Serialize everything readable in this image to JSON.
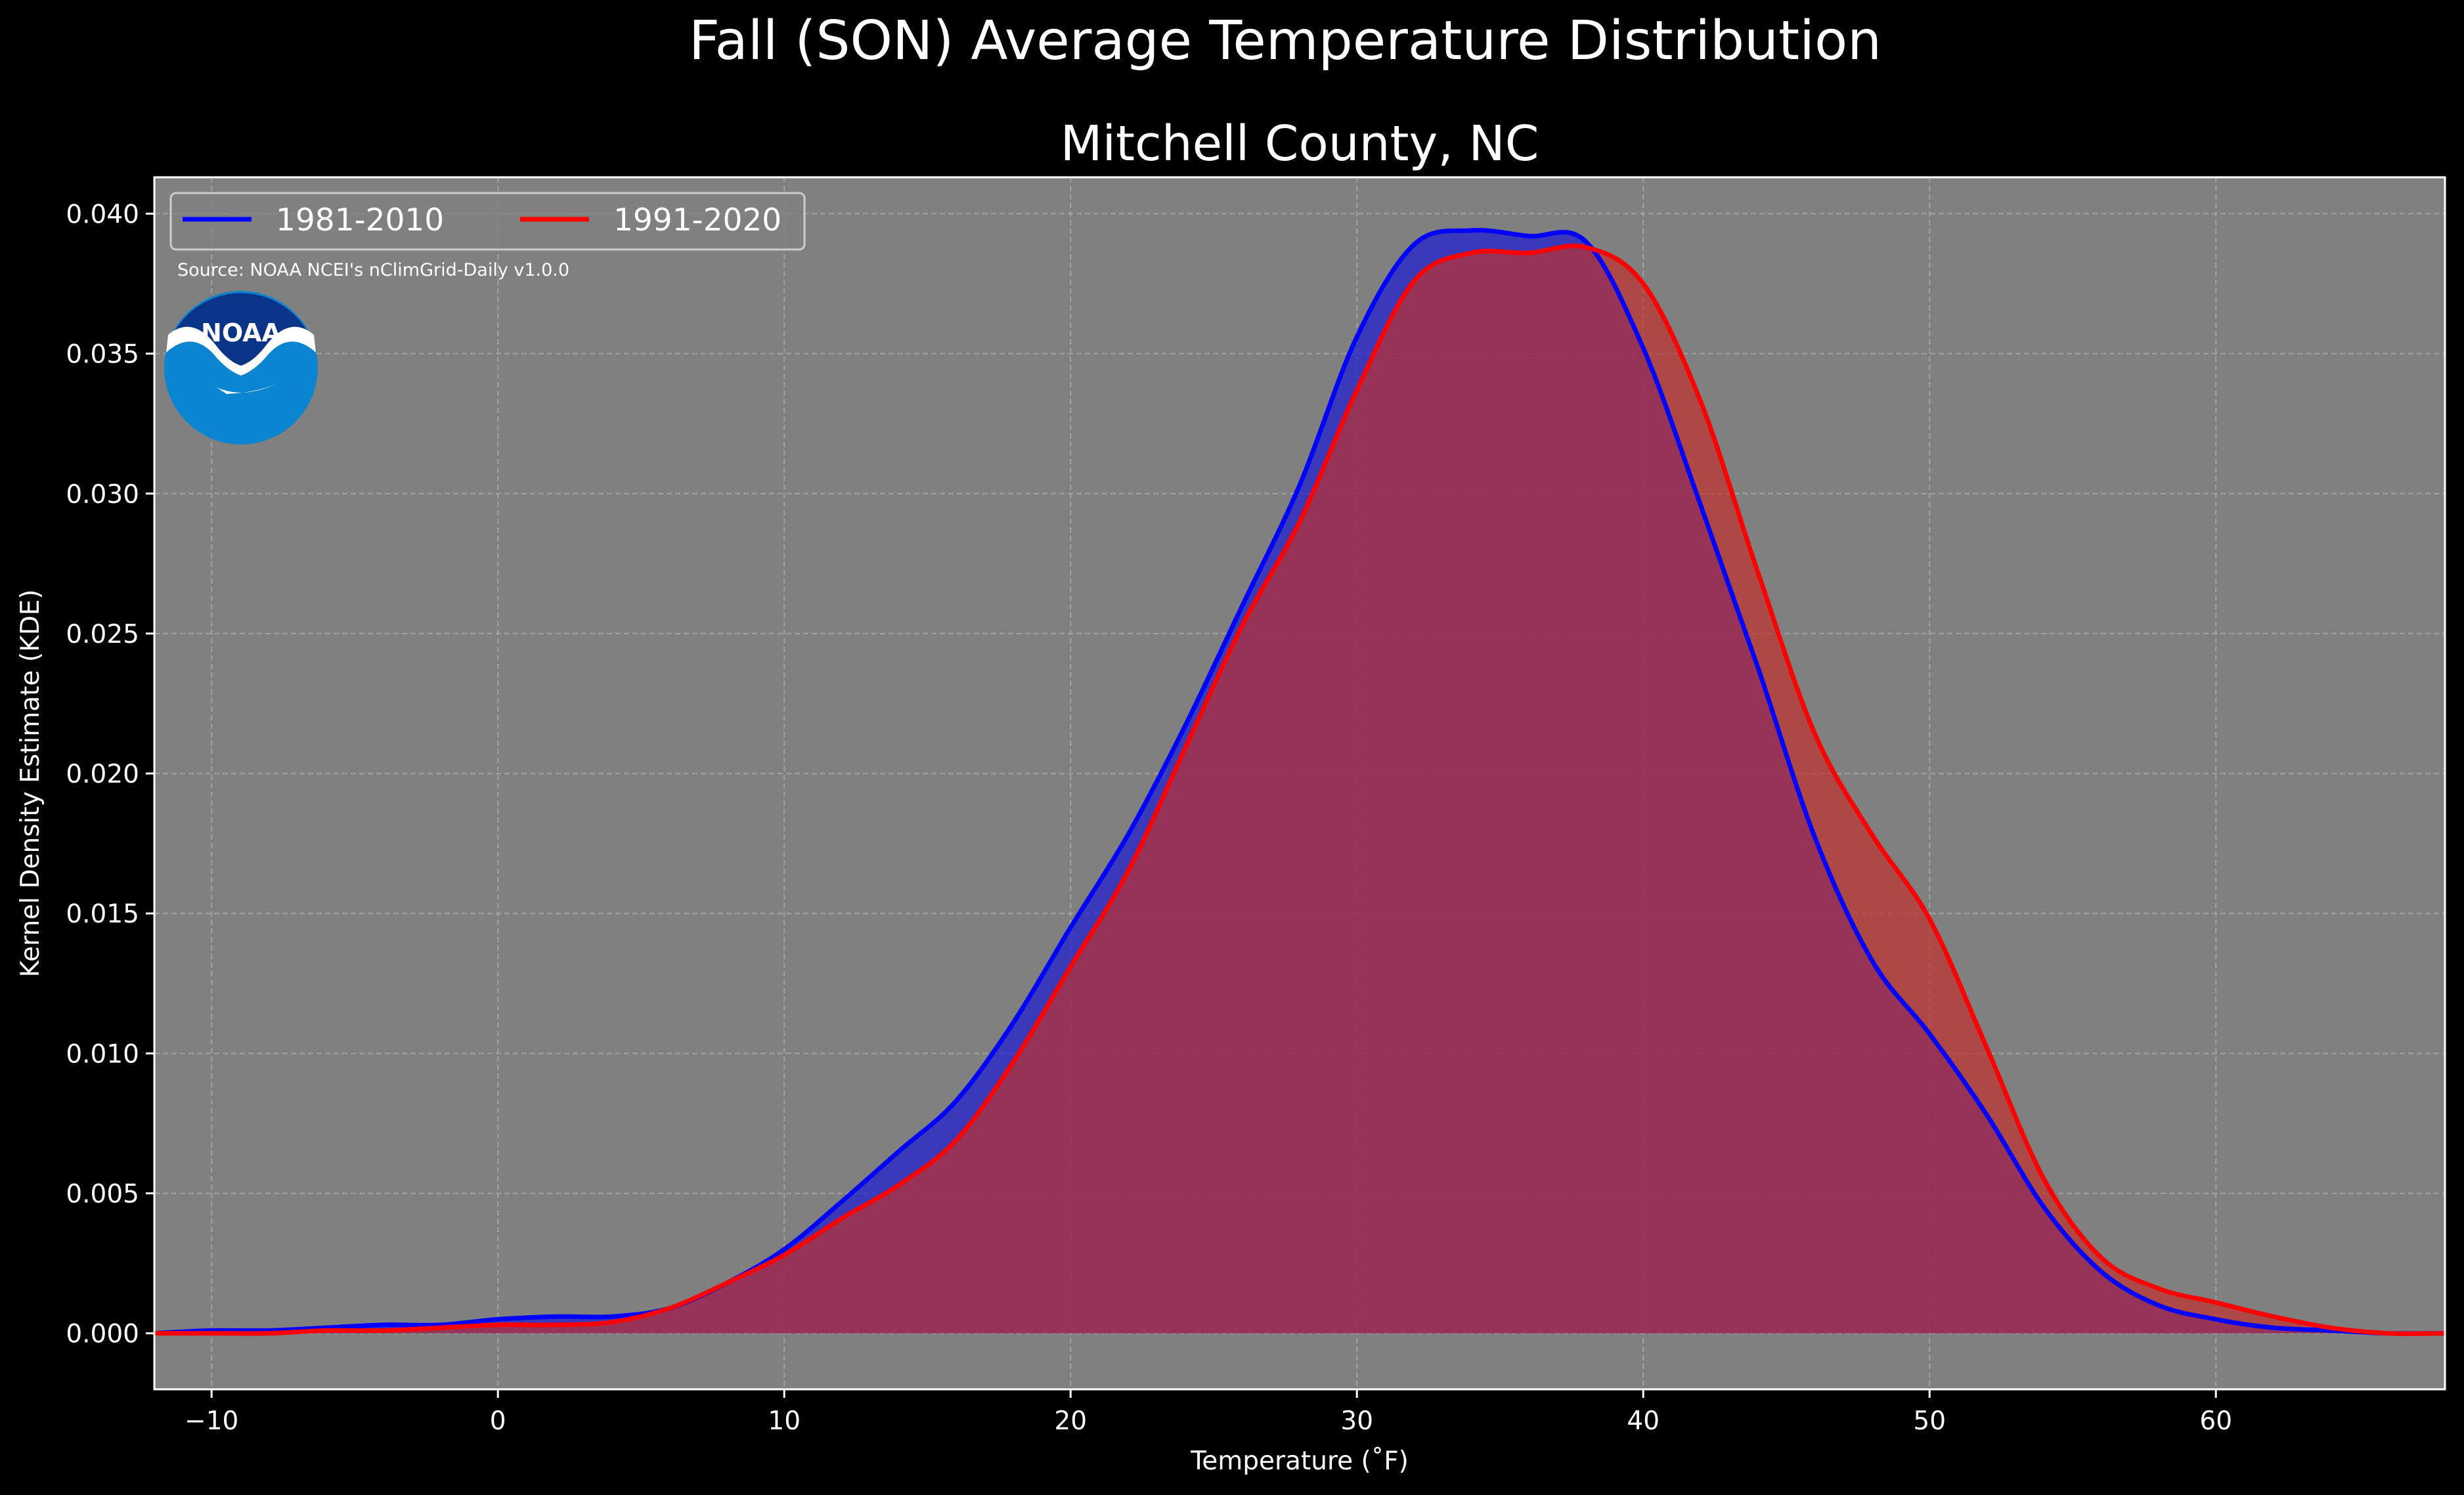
{
  "chart_data": {
    "type": "area",
    "suptitle": "Fall (SON) Average Temperature Distribution",
    "title": "Mitchell County, NC",
    "xlabel": "Temperature ($^\\circ$F)",
    "xlabel_display": "Temperature (˚F)",
    "ylabel": "Kernel Density Estimate (KDE)",
    "xlim": [
      -12,
      68
    ],
    "ylim": [
      -0.002,
      0.0413
    ],
    "xticks": [
      -10,
      0,
      10,
      20,
      30,
      40,
      50,
      60
    ],
    "xtick_labels": [
      "−10",
      "0",
      "10",
      "20",
      "30",
      "40",
      "50",
      "60"
    ],
    "yticks": [
      0.0,
      0.005,
      0.01,
      0.015,
      0.02,
      0.025,
      0.03,
      0.035,
      0.04
    ],
    "ytick_labels": [
      "0.000",
      "0.005",
      "0.010",
      "0.015",
      "0.020",
      "0.025",
      "0.030",
      "0.035",
      "0.040"
    ],
    "grid": true,
    "legend_position": "top-left",
    "source": "Source: NOAA NCEI's nClimGrid-Daily v1.0.0",
    "logo_text": "NOAA",
    "series": [
      {
        "name": "1981-2010",
        "color": "#0000ff",
        "fill_color": "#2222cc",
        "x": [
          -12,
          -10,
          -8,
          -6,
          -4,
          -2,
          0,
          2,
          4,
          6,
          8,
          10,
          12,
          14,
          16,
          18,
          20,
          22,
          24,
          26,
          28,
          30,
          32,
          34,
          36,
          38,
          40,
          42,
          44,
          46,
          48,
          50,
          52,
          54,
          56,
          58,
          60,
          62,
          64,
          66,
          68
        ],
        "y": [
          0.0,
          0.0001,
          0.0001,
          0.0002,
          0.0003,
          0.0003,
          0.0005,
          0.0006,
          0.0006,
          0.0009,
          0.0018,
          0.003,
          0.0047,
          0.0065,
          0.0083,
          0.0111,
          0.0145,
          0.0178,
          0.0217,
          0.026,
          0.0303,
          0.0356,
          0.0389,
          0.0394,
          0.0392,
          0.039,
          0.0352,
          0.0296,
          0.0238,
          0.0177,
          0.0133,
          0.0107,
          0.0078,
          0.0045,
          0.0022,
          0.001,
          0.0005,
          0.0002,
          0.0001,
          0.0,
          0.0
        ]
      },
      {
        "name": "1991-2020",
        "color": "#ff0000",
        "fill_color": "#c0302f",
        "x": [
          -12,
          -10,
          -8,
          -6,
          -4,
          -2,
          0,
          2,
          4,
          6,
          8,
          10,
          12,
          14,
          16,
          18,
          20,
          22,
          24,
          26,
          28,
          30,
          32,
          34,
          36,
          38,
          40,
          42,
          44,
          46,
          48,
          50,
          52,
          54,
          56,
          58,
          60,
          62,
          64,
          66,
          68
        ],
        "y": [
          0.0,
          0.0,
          0.0,
          0.0001,
          0.0001,
          0.0002,
          0.0003,
          0.0003,
          0.0004,
          0.0009,
          0.0018,
          0.0028,
          0.0041,
          0.0053,
          0.0069,
          0.0097,
          0.0131,
          0.0165,
          0.0209,
          0.0253,
          0.029,
          0.0337,
          0.0376,
          0.0386,
          0.0386,
          0.0388,
          0.0375,
          0.0333,
          0.0272,
          0.0214,
          0.0178,
          0.0148,
          0.0102,
          0.0055,
          0.0027,
          0.0016,
          0.0011,
          0.0006,
          0.0002,
          0.0,
          0.0
        ]
      }
    ]
  }
}
